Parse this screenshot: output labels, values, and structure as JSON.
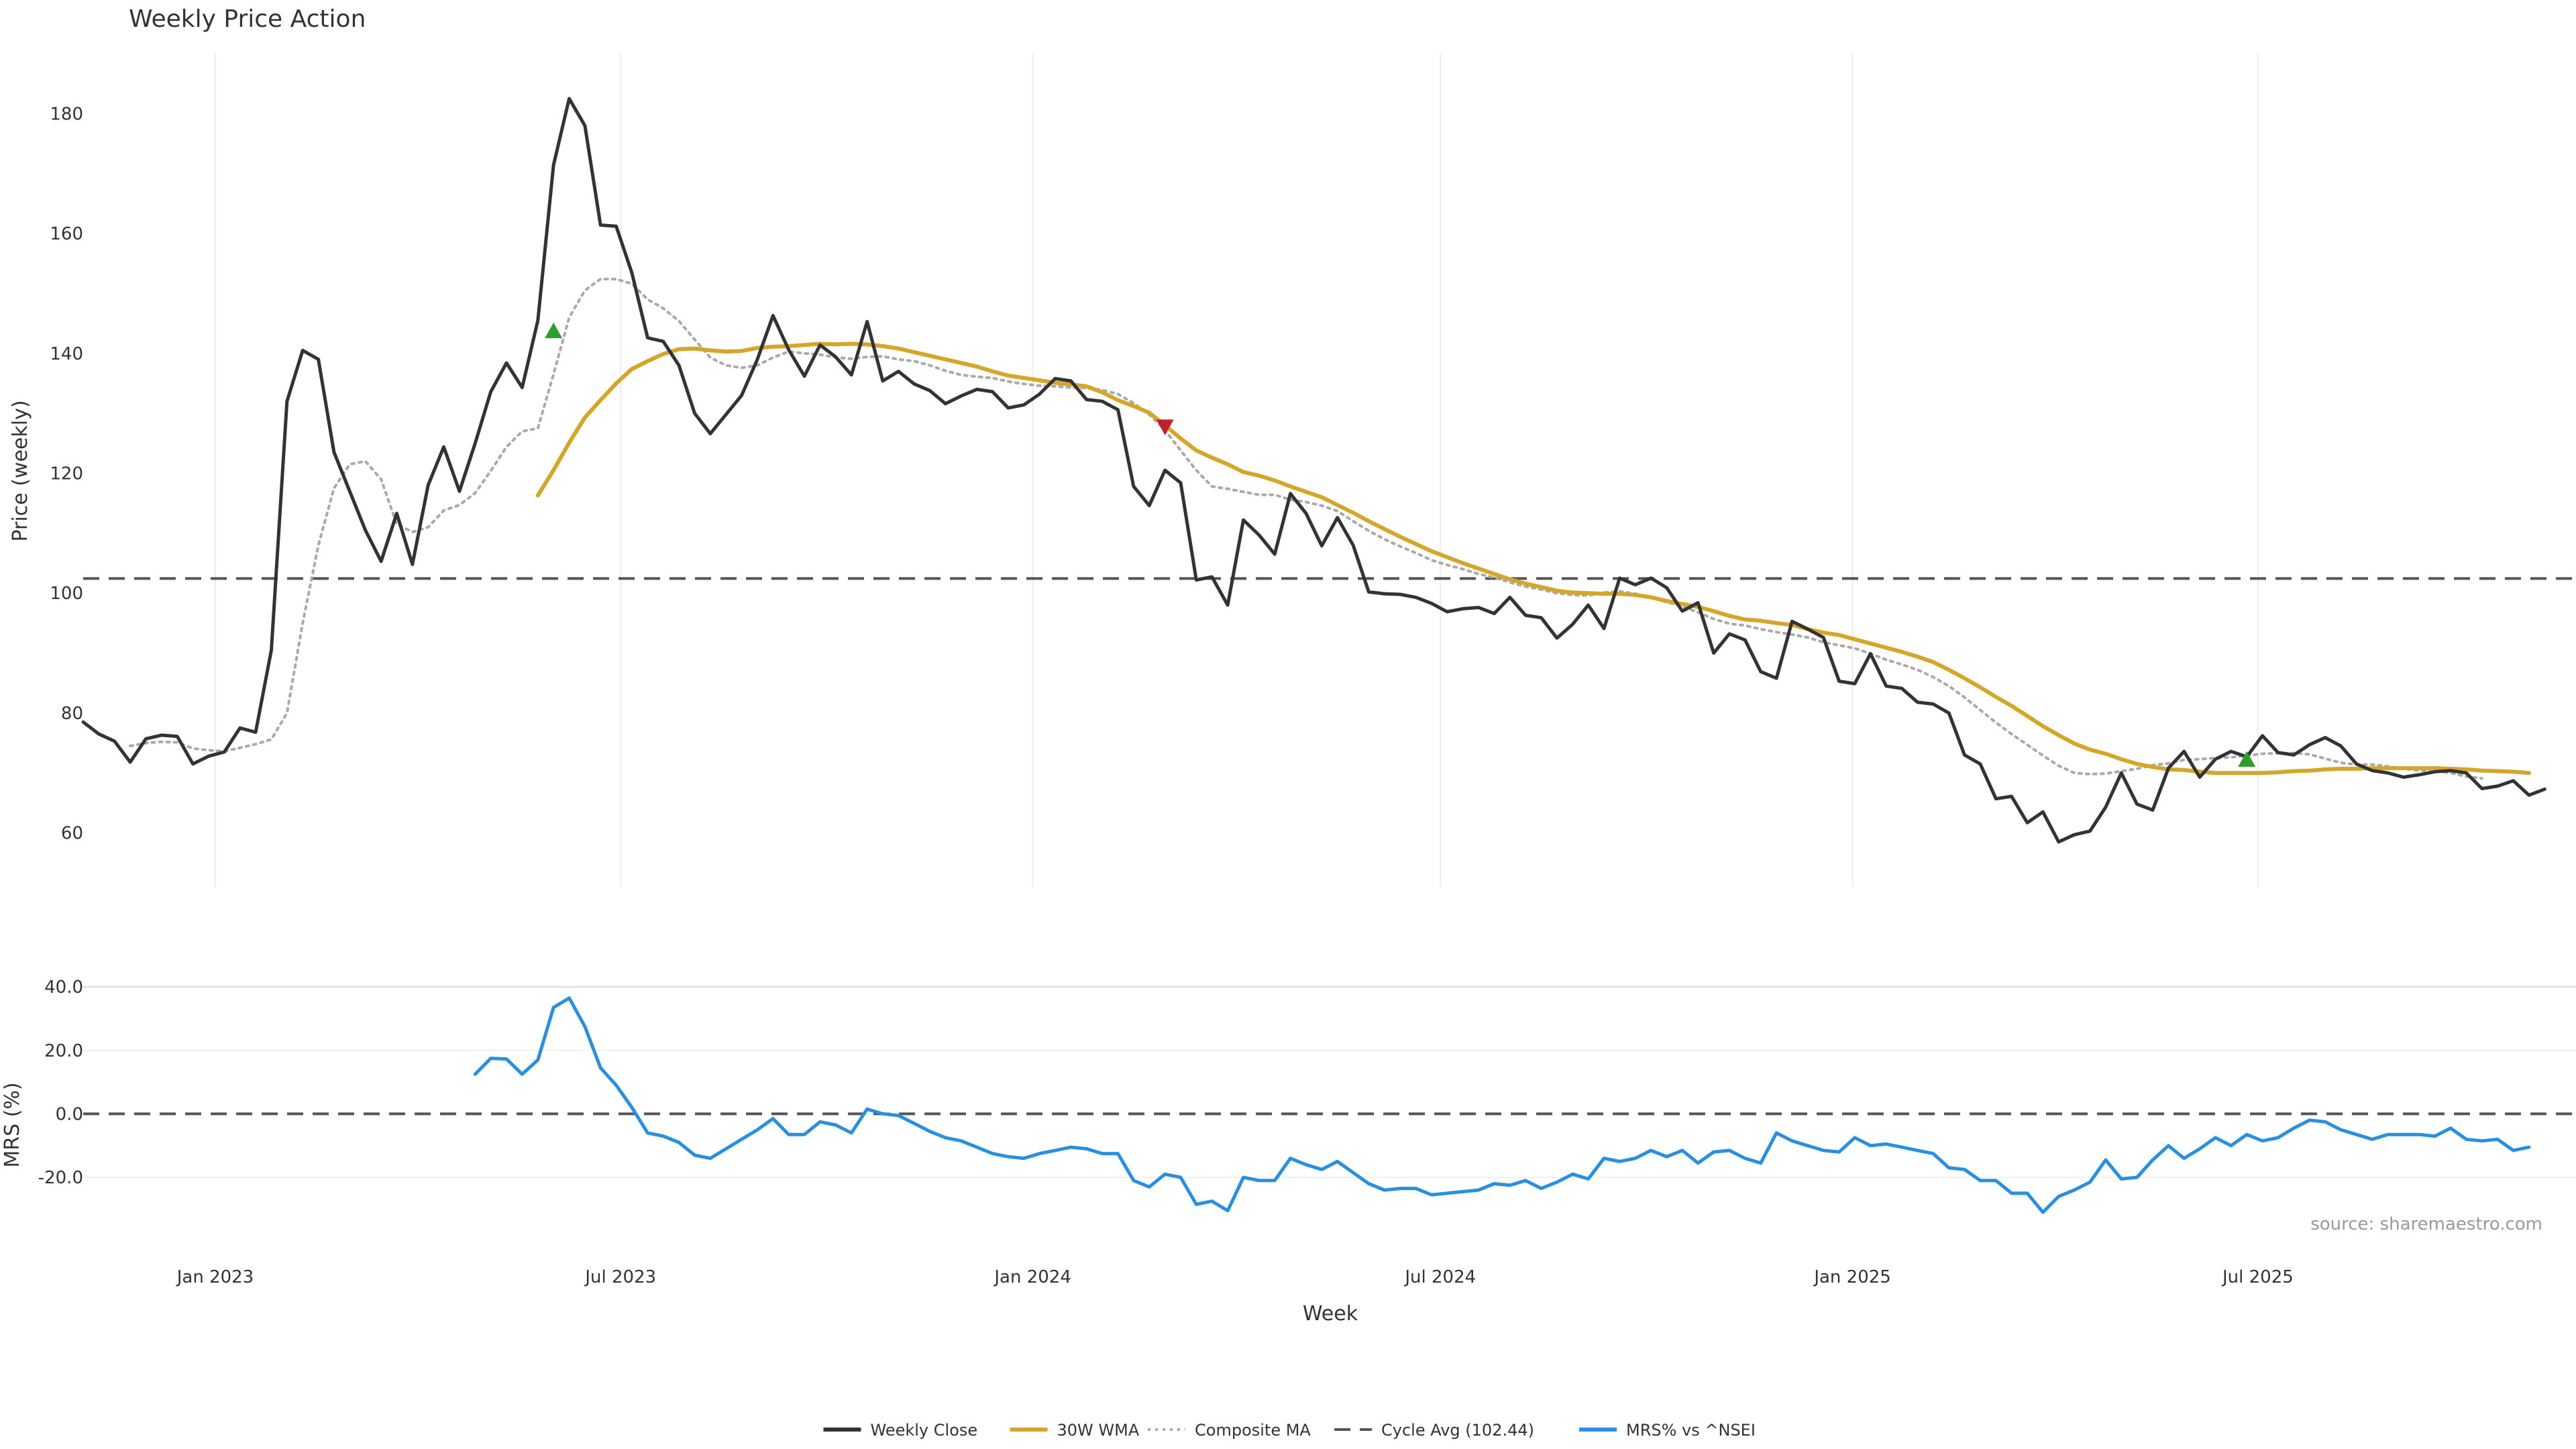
{
  "chart_data": [
    {
      "id": "price",
      "type": "line",
      "title": "Weekly Price Action",
      "ylabel": "Price (weekly)",
      "ylim": [
        51,
        190
      ],
      "yticks": [
        60,
        80,
        100,
        120,
        140,
        160,
        180
      ],
      "xlim": [
        "2022-11-03",
        "2025-11-20"
      ],
      "x_start": "2022-11-03",
      "x_step_days": 7,
      "grid": "vertical",
      "reference_line": {
        "name": "Cycle Avg (102.44)",
        "value": 102.44,
        "color": "#555555"
      },
      "series": [
        {
          "name": "Weekly Close",
          "color": "#333333",
          "start_index": 0,
          "values": [
            78.5,
            76.5,
            75.3,
            71.8,
            75.7,
            76.3,
            76.1,
            71.5,
            72.8,
            73.5,
            77.5,
            76.8,
            90.5,
            132.0,
            140.5,
            139.0,
            123.5,
            117.0,
            110.5,
            105.3,
            113.3,
            104.8,
            118.0,
            124.4,
            117.0,
            125.0,
            133.6,
            138.4,
            134.3,
            145.5,
            171.4,
            182.5,
            178.0,
            161.4,
            161.2,
            153.4,
            142.6,
            142.0,
            138.0,
            130.0,
            126.6,
            129.8,
            133.0,
            139.0,
            146.3,
            140.6,
            136.2,
            141.4,
            139.4,
            136.4,
            145.3,
            135.4,
            137.0,
            134.9,
            133.8,
            131.6,
            132.9,
            134.0,
            133.6,
            130.9,
            131.4,
            133.2,
            135.8,
            135.4,
            132.3,
            132.0,
            130.6,
            117.8,
            114.6,
            120.5,
            118.4,
            102.2,
            102.7,
            98.0,
            112.2,
            109.7,
            106.5,
            116.6,
            113.3,
            107.9,
            112.6,
            108.0,
            100.2,
            99.9,
            99.8,
            99.3,
            98.3,
            96.9,
            97.4,
            97.6,
            96.6,
            99.3,
            96.3,
            95.9,
            92.5,
            94.8,
            98.0,
            94.1,
            102.5,
            101.4,
            102.5,
            100.9,
            97.0,
            98.4,
            90.0,
            93.2,
            92.2,
            86.9,
            85.8,
            95.3,
            94.0,
            92.6,
            85.3,
            84.9,
            89.9,
            84.5,
            84.1,
            81.8,
            81.5,
            80.0,
            73.0,
            71.5,
            65.7,
            66.1,
            61.7,
            63.5,
            58.5,
            59.7,
            60.3,
            64.3,
            70.0,
            64.8,
            63.8,
            70.8,
            73.6,
            69.3,
            72.3,
            73.6,
            72.7,
            76.2,
            73.4,
            73.0,
            74.7,
            75.9,
            74.5,
            71.5,
            70.4,
            70.0,
            69.3,
            69.7,
            70.2,
            70.4,
            70.0,
            67.4,
            67.8,
            68.7,
            66.3,
            67.3
          ]
        },
        {
          "name": "30W WMA",
          "color": "#d4a62a",
          "start_index": 29,
          "values": [
            116.3,
            120.5,
            125.1,
            129.3,
            132.2,
            135.0,
            137.4,
            138.7,
            139.9,
            140.7,
            140.8,
            140.5,
            140.3,
            140.4,
            140.9,
            141.1,
            141.2,
            141.4,
            141.6,
            141.5,
            141.6,
            141.5,
            141.2,
            140.8,
            140.2,
            139.6,
            139.0,
            138.4,
            137.8,
            137.0,
            136.3,
            135.9,
            135.5,
            135.1,
            134.8,
            134.5,
            133.5,
            132.2,
            131.2,
            130.1,
            128.0,
            125.8,
            123.8,
            122.6,
            121.5,
            120.2,
            119.6,
            118.8,
            117.8,
            116.9,
            116.0,
            114.7,
            113.4,
            112.0,
            110.7,
            109.4,
            108.2,
            107.0,
            106.0,
            105.0,
            104.1,
            103.2,
            102.3,
            101.6,
            101.0,
            100.4,
            100.1,
            100.0,
            99.9,
            99.9,
            99.7,
            99.3,
            98.7,
            98.2,
            97.7,
            97.0,
            96.2,
            95.6,
            95.4,
            95.0,
            94.7,
            94.0,
            93.4,
            93.0,
            92.3,
            91.6,
            90.9,
            90.2,
            89.4,
            88.5,
            87.2,
            85.8,
            84.3,
            82.7,
            81.2,
            79.5,
            77.8,
            76.3,
            74.9,
            73.9,
            73.2,
            72.3,
            71.5,
            71.0,
            70.6,
            70.5,
            70.2,
            70.0,
            70.0,
            70.0,
            70.0,
            70.1,
            70.3,
            70.4,
            70.6,
            70.7,
            70.7,
            70.8,
            70.8,
            70.8,
            70.8,
            70.8,
            70.7,
            70.6,
            70.4,
            70.3,
            70.2,
            70.0
          ]
        },
        {
          "name": "Composite MA",
          "color": "#aaaaaa",
          "start_index": 3,
          "values": [
            74.5,
            75.0,
            75.2,
            75.1,
            74.1,
            73.8,
            73.6,
            74.2,
            74.8,
            75.6,
            80.0,
            95.0,
            108.0,
            117.5,
            121.5,
            122.0,
            119.0,
            111.5,
            110.2,
            111.0,
            113.8,
            114.7,
            116.7,
            120.4,
            124.4,
            127.0,
            127.5,
            136.5,
            146.0,
            150.5,
            152.4,
            152.4,
            151.6,
            149.0,
            147.5,
            145.4,
            142.3,
            139.3,
            138.0,
            137.6,
            138.0,
            139.3,
            140.3,
            140.0,
            139.8,
            139.3,
            139.1,
            139.4,
            139.5,
            139.0,
            138.7,
            138.0,
            137.1,
            136.4,
            136.1,
            135.9,
            135.3,
            134.9,
            134.6,
            134.5,
            134.3,
            134.2,
            133.9,
            133.2,
            131.7,
            129.8,
            127.2,
            123.8,
            120.5,
            117.8,
            117.4,
            116.9,
            116.4,
            116.4,
            115.6,
            115.2,
            114.6,
            113.7,
            112.0,
            110.4,
            109.0,
            107.8,
            106.7,
            105.5,
            104.7,
            104.0,
            103.2,
            102.6,
            101.8,
            101.1,
            100.6,
            100.0,
            99.7,
            99.6,
            100.1,
            100.3,
            99.9,
            99.3,
            98.5,
            97.8,
            96.8,
            95.7,
            94.9,
            94.6,
            94.0,
            93.5,
            93.1,
            92.6,
            91.8,
            91.3,
            90.8,
            89.9,
            88.9,
            88.1,
            87.2,
            86.0,
            84.5,
            82.6,
            80.5,
            78.4,
            76.5,
            74.7,
            72.9,
            71.2,
            70.0,
            69.8,
            69.9,
            70.3,
            70.7,
            71.3,
            71.6,
            72.2,
            72.3,
            72.5,
            72.6,
            72.9,
            73.2,
            73.3,
            73.3,
            73.1,
            72.4,
            71.7,
            71.4,
            71.4,
            71.1,
            70.7,
            70.4,
            70.3,
            70.0,
            69.4,
            69.1
          ]
        }
      ],
      "markers": [
        {
          "type": "buy",
          "shape": "triangle-up",
          "color": "#2ca02c",
          "x_index": 30,
          "y": 143.7
        },
        {
          "type": "sell",
          "shape": "triangle-down",
          "color": "#c0202c",
          "x_index": 69,
          "y": 127.8
        },
        {
          "type": "buy",
          "shape": "triangle-up",
          "color": "#2ca02c",
          "x_index": 138,
          "y": 72.2
        }
      ]
    },
    {
      "id": "mrs",
      "type": "line",
      "ylabel": "MRS (%)",
      "xlabel": "Week",
      "ylim": [
        -39,
        47
      ],
      "yticks": [
        -20.0,
        0.0,
        20.0,
        40.0
      ],
      "ytick_labels": [
        "-20.0",
        "0.0",
        "20.0",
        "40.0"
      ],
      "xticks": [
        "2023-01-01",
        "2023-07-01",
        "2024-01-01",
        "2024-07-01",
        "2025-01-01",
        "2025-07-01"
      ],
      "xtick_labels": [
        "Jan 2023",
        "Jul 2023",
        "Jan 2024",
        "Jul 2024",
        "Jan 2025",
        "Jul 2025"
      ],
      "grid": "horizontal",
      "reference_line": {
        "value": 0,
        "color": "#555555"
      },
      "series": [
        {
          "name": "MRS% vs ^NSEI",
          "color": "#2a8fdf",
          "start_index": 25,
          "values": [
            12.5,
            17.5,
            17.3,
            12.5,
            17.0,
            33.5,
            36.5,
            27.5,
            14.5,
            9.0,
            2.0,
            -6.0,
            -7.0,
            -9.0,
            -13.0,
            -14.0,
            -11.0,
            -8.0,
            -5.0,
            -1.5,
            -6.5,
            -6.5,
            -2.5,
            -3.5,
            -6.0,
            1.5,
            0.0,
            -0.5,
            -3.0,
            -5.5,
            -7.5,
            -8.5,
            -10.5,
            -12.5,
            -13.5,
            -14.0,
            -12.5,
            -11.5,
            -10.5,
            -11.0,
            -12.5,
            -12.5,
            -21.0,
            -23.0,
            -19.0,
            -20.0,
            -28.5,
            -27.5,
            -30.5,
            -20.0,
            -21.0,
            -21.0,
            -14.0,
            -16.0,
            -17.5,
            -15.0,
            -18.5,
            -22.0,
            -24.0,
            -23.5,
            -23.5,
            -25.5,
            -25.0,
            -24.5,
            -24.0,
            -22.0,
            -22.5,
            -21.0,
            -23.5,
            -21.5,
            -19.0,
            -20.5,
            -14.0,
            -15.0,
            -14.0,
            -11.5,
            -13.5,
            -11.5,
            -15.5,
            -12.0,
            -11.5,
            -14.0,
            -15.5,
            -6.0,
            -8.5,
            -10.0,
            -11.5,
            -12.0,
            -7.5,
            -10.0,
            -9.5,
            -10.5,
            -11.5,
            -12.5,
            -17.0,
            -17.5,
            -21.0,
            -21.0,
            -25.0,
            -25.0,
            -31.0,
            -26.0,
            -24.0,
            -21.5,
            -14.5,
            -20.5,
            -20.0,
            -14.5,
            -10.0,
            -14.0,
            -11.0,
            -7.5,
            -10.0,
            -6.5,
            -8.5,
            -7.5,
            -4.5,
            -2.0,
            -2.5,
            -5.0,
            -6.5,
            -8.0,
            -6.5,
            -6.5,
            -6.5,
            -7.0,
            -4.5,
            -8.0,
            -8.5,
            -8.0,
            -11.5,
            -10.5
          ]
        }
      ],
      "annotation": "source: sharemaestro.com"
    }
  ],
  "legend": {
    "placement": "bottom-center",
    "entries": [
      {
        "label": "Weekly Close",
        "style": "solid",
        "color": "#333333"
      },
      {
        "label": "30W WMA",
        "style": "solid",
        "color": "#d4a62a"
      },
      {
        "label": "Composite MA",
        "style": "dotted",
        "color": "#aaaaaa"
      },
      {
        "label": "Cycle Avg (102.44)",
        "style": "dashed",
        "color": "#555555"
      },
      {
        "label": "MRS% vs ^NSEI",
        "style": "solid",
        "color": "#2a8fdf"
      }
    ]
  }
}
